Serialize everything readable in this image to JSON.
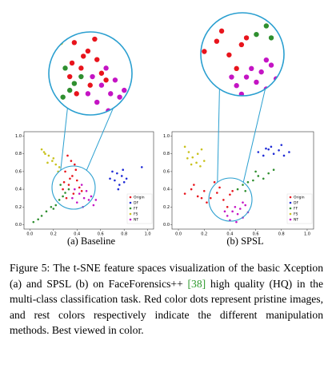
{
  "chart_data": [
    {
      "type": "scatter",
      "caption": "(a) Baseline",
      "xlim": [
        -0.05,
        1.05
      ],
      "ylim": [
        -0.05,
        1.05
      ],
      "xticks": [
        {
          "value": 0,
          "label": "0.0"
        },
        0.2,
        0.4,
        0.6,
        0.8,
        {
          "value": 1,
          "label": "1.0"
        }
      ],
      "yticks": [
        {
          "value": 0,
          "label": "0.0"
        },
        0.2,
        0.4,
        0.6,
        0.8,
        {
          "value": 1,
          "label": "1.0"
        }
      ],
      "legend": "lower right",
      "series": [
        {
          "name": "Origin",
          "color": "#e8141c",
          "x": [
            0.32,
            0.35,
            0.38,
            0.3,
            0.36,
            0.4,
            0.33,
            0.28,
            0.42,
            0.37,
            0.31,
            0.39,
            0.34,
            0.44,
            0.29
          ],
          "values": [
            0.78,
            0.72,
            0.68,
            0.6,
            0.55,
            0.5,
            0.45,
            0.4,
            0.42,
            0.35,
            0.3,
            0.62,
            0.52,
            0.38,
            0.48
          ]
        },
        {
          "name": "DF",
          "color": "#1f2bd6",
          "x": [
            0.7,
            0.74,
            0.78,
            0.72,
            0.8,
            0.76,
            0.68,
            0.82,
            0.75,
            0.79,
            0.95
          ],
          "values": [
            0.6,
            0.58,
            0.55,
            0.5,
            0.48,
            0.45,
            0.52,
            0.52,
            0.4,
            0.62,
            0.65
          ]
        },
        {
          "name": "FF",
          "color": "#2f8f2f",
          "x": [
            0.03,
            0.07,
            0.1,
            0.14,
            0.18,
            0.22,
            0.25,
            0.28,
            0.3,
            0.33,
            0.2,
            0.26
          ],
          "values": [
            0.03,
            0.06,
            0.1,
            0.15,
            0.2,
            0.22,
            0.28,
            0.32,
            0.36,
            0.4,
            0.18,
            0.45
          ]
        },
        {
          "name": "FS",
          "color": "#c9c21e",
          "x": [
            0.1,
            0.13,
            0.16,
            0.19,
            0.22,
            0.25,
            0.15,
            0.2,
            0.24,
            0.12
          ],
          "values": [
            0.85,
            0.8,
            0.78,
            0.72,
            0.68,
            0.65,
            0.7,
            0.75,
            0.6,
            0.82
          ]
        },
        {
          "name": "NT",
          "color": "#c414c4",
          "x": [
            0.38,
            0.42,
            0.46,
            0.5,
            0.54,
            0.44,
            0.48,
            0.4,
            0.52,
            0.36,
            0.45,
            0.56
          ],
          "values": [
            0.4,
            0.35,
            0.3,
            0.28,
            0.22,
            0.45,
            0.38,
            0.25,
            0.32,
            0.3,
            0.2,
            0.28
          ]
        }
      ]
    },
    {
      "type": "scatter",
      "caption": "(b) SPSL",
      "xlim": [
        -0.05,
        1.05
      ],
      "ylim": [
        -0.05,
        1.05
      ],
      "xticks": [
        {
          "value": 0,
          "label": "0.0"
        },
        0.2,
        0.4,
        0.6,
        0.8,
        {
          "value": 1,
          "label": "1.0"
        }
      ],
      "yticks": [
        {
          "value": 0,
          "label": "0.0"
        },
        0.2,
        0.4,
        0.6,
        0.8,
        {
          "value": 1,
          "label": "1.0"
        }
      ],
      "legend": "lower right",
      "series": [
        {
          "name": "Origin",
          "color": "#e8141c",
          "x": [
            0.05,
            0.1,
            0.15,
            0.2,
            0.25,
            0.3,
            0.35,
            0.4,
            0.12,
            0.22,
            0.32,
            0.28,
            0.38,
            0.18,
            0.42
          ],
          "values": [
            0.35,
            0.4,
            0.32,
            0.38,
            0.3,
            0.36,
            0.28,
            0.34,
            0.45,
            0.25,
            0.42,
            0.48,
            0.2,
            0.3,
            0.38
          ]
        },
        {
          "name": "DF",
          "color": "#1f2bd6",
          "x": [
            0.62,
            0.66,
            0.7,
            0.74,
            0.78,
            0.82,
            0.86,
            0.72,
            0.8,
            0.68
          ],
          "values": [
            0.82,
            0.78,
            0.85,
            0.8,
            0.84,
            0.78,
            0.82,
            0.88,
            0.9,
            0.86
          ]
        },
        {
          "name": "FF",
          "color": "#2f8f2f",
          "x": [
            0.46,
            0.5,
            0.54,
            0.58,
            0.62,
            0.66,
            0.7,
            0.52,
            0.6,
            0.74
          ],
          "values": [
            0.4,
            0.45,
            0.48,
            0.5,
            0.55,
            0.52,
            0.58,
            0.38,
            0.6,
            0.62
          ]
        },
        {
          "name": "FS",
          "color": "#c9c21e",
          "x": [
            0.05,
            0.08,
            0.11,
            0.14,
            0.17,
            0.2,
            0.1,
            0.15,
            0.07,
            0.18
          ],
          "values": [
            0.88,
            0.82,
            0.76,
            0.7,
            0.66,
            0.72,
            0.68,
            0.8,
            0.75,
            0.85
          ]
        },
        {
          "name": "NT",
          "color": "#c414c4",
          "x": [
            0.38,
            0.42,
            0.46,
            0.5,
            0.54,
            0.44,
            0.48,
            0.4,
            0.52,
            0.45,
            0.36,
            0.5
          ],
          "values": [
            0.1,
            0.15,
            0.12,
            0.08,
            0.14,
            0.2,
            0.18,
            0.05,
            0.22,
            0.03,
            0.15,
            0.25
          ]
        }
      ]
    }
  ],
  "caption": {
    "label": "Figure 5:",
    "text_before": " The t-SNE feature spaces visualization of the basic Xception (a) and SPSL (b) on FaceForensics++ ",
    "citation": "[38]",
    "text_after": " high quality (HQ) in the multi-class classification task. Red color dots represent pristine images, and rest colors respectively indicate the different manipulation methods. Best viewed in color."
  }
}
